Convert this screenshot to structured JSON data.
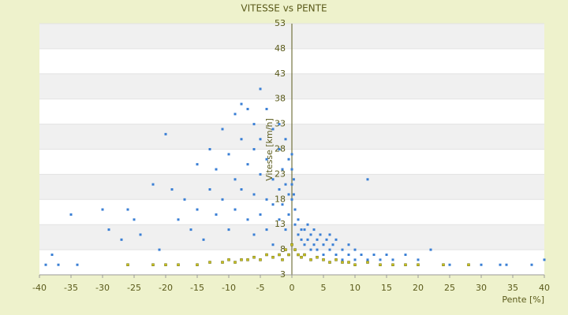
{
  "chart_data": {
    "type": "scatter",
    "title": "VITESSE vs PENTE",
    "x_label": "Pente [%]",
    "y_label": "Vitesse [km/h]",
    "xlim": [
      -40,
      40
    ],
    "xticks": [
      -40,
      -35,
      -30,
      -25,
      -20,
      -15,
      -10,
      -5,
      0,
      5,
      10,
      15,
      20,
      25,
      30,
      35,
      40
    ],
    "ylim": [
      3,
      53
    ],
    "yticks": [
      3,
      8,
      13,
      18,
      23,
      28,
      33,
      38,
      43,
      48,
      53
    ],
    "grid": true,
    "series": [
      {
        "color": "#3a7fd5",
        "x": [
          -39,
          -38,
          -37,
          -35,
          -34,
          -30,
          -29,
          -27,
          -26,
          -25,
          -24,
          -22,
          -21,
          -20,
          -19,
          -18,
          -17,
          -16,
          -15,
          -15,
          -14,
          -13,
          -13,
          -12,
          -12,
          -11,
          -11,
          -10,
          -10,
          -9,
          -9,
          -9,
          -8,
          -8,
          -8,
          -7,
          -7,
          -7,
          -6,
          -6,
          -6,
          -6,
          -5,
          -5,
          -5,
          -5,
          -4,
          -4,
          -4,
          -4,
          -3,
          -3,
          -3,
          -3,
          -2,
          -2,
          -2,
          -2,
          -1.5,
          -1.5,
          -1,
          -1,
          -1,
          -0.5,
          -0.5,
          -0.5,
          0,
          0,
          0,
          0,
          0.3,
          0.3,
          0.5,
          0.5,
          1,
          1,
          1.5,
          1.5,
          2,
          2,
          2.5,
          2.5,
          3,
          3,
          3.5,
          3.5,
          4,
          4,
          4.5,
          5,
          5,
          5.5,
          6,
          6,
          6.5,
          7,
          7,
          8,
          8,
          9,
          9,
          10,
          10,
          11,
          12,
          12,
          13,
          14,
          15,
          16,
          18,
          20,
          22,
          25,
          28,
          30,
          33,
          34,
          38,
          40
        ],
        "y": [
          5,
          7,
          5,
          15,
          5,
          16,
          12,
          10,
          16,
          14,
          11,
          21,
          8,
          31,
          20,
          14,
          18,
          12,
          25,
          16,
          10,
          28,
          20,
          15,
          24,
          32,
          18,
          12,
          27,
          22,
          35,
          16,
          30,
          37,
          20,
          25,
          14,
          36,
          33,
          19,
          28,
          11,
          40,
          23,
          30,
          15,
          26,
          36,
          18,
          12,
          32,
          22,
          17,
          9,
          28,
          20,
          14,
          33,
          24,
          17,
          30,
          21,
          12,
          26,
          19,
          15,
          24,
          21,
          18,
          27,
          22,
          19,
          16,
          13,
          14,
          11,
          12,
          10,
          12,
          9,
          13,
          10,
          11,
          8,
          12,
          9,
          10,
          8,
          11,
          9,
          7,
          10,
          8,
          11,
          9,
          7,
          10,
          8,
          6,
          7,
          9,
          6,
          8,
          7,
          22,
          6,
          7,
          6,
          7,
          6,
          7,
          6,
          8,
          5,
          5,
          5,
          5,
          5,
          5,
          6
        ]
      },
      {
        "color": "#c9c21c",
        "x": [
          -26,
          -22,
          -20,
          -18,
          -15,
          -13,
          -11,
          -10,
          -9,
          -8,
          -7,
          -6,
          -5,
          -4,
          -3,
          -2,
          -1.5,
          -1,
          -0.5,
          0,
          0.5,
          1,
          1.5,
          2,
          3,
          4,
          5,
          6,
          7,
          8,
          9,
          10,
          12,
          14,
          16,
          18,
          20,
          24,
          28
        ],
        "y": [
          5,
          5,
          5,
          5,
          5,
          5.5,
          5.5,
          6,
          5.5,
          6,
          6,
          6.5,
          6,
          7,
          6.5,
          7,
          6,
          8,
          7,
          9,
          8,
          7,
          6.5,
          7,
          6,
          6.5,
          6,
          5.5,
          6,
          5.5,
          5.5,
          5,
          5.5,
          5,
          5,
          5,
          5,
          5,
          5
        ]
      }
    ]
  }
}
